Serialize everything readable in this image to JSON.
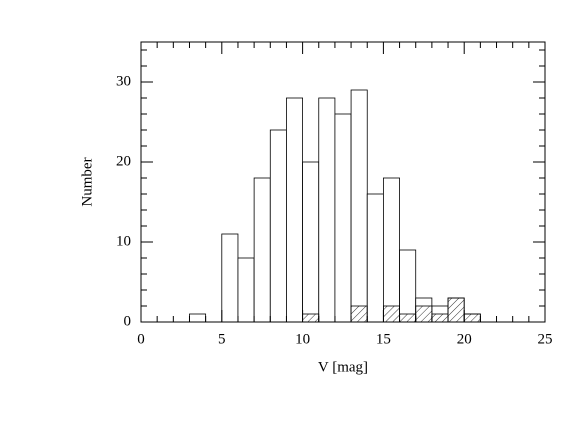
{
  "chart_data": {
    "type": "histogram",
    "xlabel": "V  [mag]",
    "ylabel": "Number",
    "bins": [
      3,
      4,
      5,
      6,
      7,
      8,
      9,
      10,
      11,
      12,
      13,
      14,
      15,
      16,
      17,
      18,
      19,
      20,
      21
    ],
    "series": [
      {
        "color": "#ffffff",
        "values": [
          1,
          0,
          11,
          8,
          18,
          24,
          28,
          20,
          28,
          26,
          29,
          16,
          18,
          9,
          3,
          2,
          3,
          1
        ]
      },
      {
        "color": "#ffffff",
        "pattern": "hatch",
        "values": [
          0,
          0,
          0,
          0,
          0,
          0,
          0,
          1,
          0,
          0,
          2,
          0,
          2,
          1,
          2,
          1,
          3,
          1
        ]
      }
    ],
    "xlim": [
      0,
      25
    ],
    "ylim": [
      0,
      35
    ],
    "xticks": [
      0,
      5,
      10,
      15,
      20,
      25
    ],
    "yticks": [
      0,
      10,
      20,
      30
    ],
    "xminorticks": [
      1,
      2,
      3,
      4,
      6,
      7,
      8,
      9,
      11,
      12,
      13,
      14,
      16,
      17,
      18,
      19,
      21,
      22,
      23,
      24
    ],
    "yminorticks": [
      2,
      4,
      6,
      8,
      12,
      14,
      16,
      18,
      22,
      24,
      26,
      28,
      32,
      34
    ]
  }
}
